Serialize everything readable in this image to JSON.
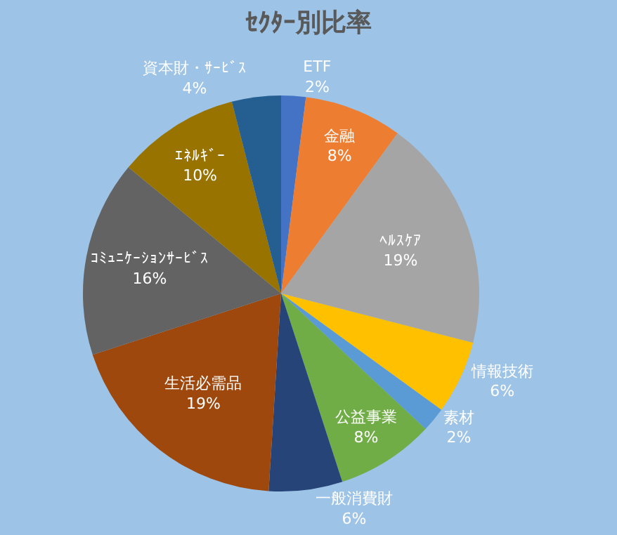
{
  "chart_data": {
    "type": "pie",
    "title": "ｾｸﾀｰ別比率",
    "categories": [
      "ETF",
      "金融",
      "ﾍﾙｽｹｱ",
      "情報技術",
      "素材",
      "公益事業",
      "一般消費財",
      "生活必需品",
      "ｺﾐｭﾆｹｰｼｮﾝｻｰﾋﾞｽ",
      "ｴﾈﾙｷﾞｰ",
      "資本財・ｻｰﾋﾞｽ"
    ],
    "values": [
      2,
      8,
      19,
      6,
      2,
      8,
      6,
      19,
      16,
      10,
      4
    ],
    "value_labels": [
      "2%",
      "8%",
      "19%",
      "6%",
      "2%",
      "8%",
      "6%",
      "19%",
      "16%",
      "10%",
      "4%"
    ],
    "colors": [
      "#4472c4",
      "#ed7d31",
      "#a5a5a5",
      "#ffc000",
      "#5b9bd5",
      "#70ad47",
      "#264478",
      "#9e480e",
      "#636363",
      "#997300",
      "#255e91"
    ],
    "legend": false
  }
}
